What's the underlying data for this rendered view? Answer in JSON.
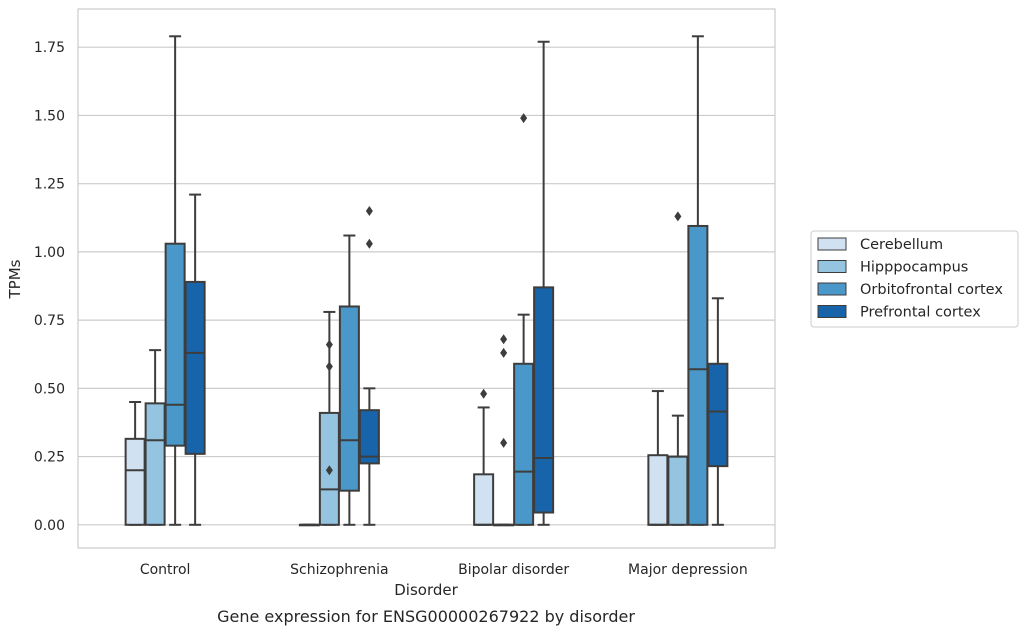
{
  "chart_data": {
    "type": "box",
    "title": "",
    "caption": "Gene expression for ENSG00000267922 by disorder",
    "xlabel": "Disorder",
    "ylabel": "TPMs",
    "categories": [
      "Control",
      "Schizophrenia",
      "Bipolar disorder",
      "Major depression"
    ],
    "ylim": [
      -0.085,
      1.89
    ],
    "yticks": [
      0.0,
      0.25,
      0.5,
      0.75,
      1.0,
      1.25,
      1.5,
      1.75
    ],
    "ytick_labels": [
      "0.00",
      "0.25",
      "0.50",
      "0.75",
      "1.00",
      "1.25",
      "1.50",
      "1.75"
    ],
    "grid": true,
    "legend_position": "right",
    "series": [
      {
        "name": "Cerebellum",
        "color": "#d0e1f2",
        "boxes": [
          {
            "whislo": 0.0,
            "q1": 0.0,
            "med": 0.2,
            "q3": 0.315,
            "whishi": 0.45,
            "fliers": []
          },
          {
            "whislo": 0.0,
            "q1": 0.0,
            "med": 0.0,
            "q3": 0.0,
            "whishi": 0.0,
            "fliers": []
          },
          {
            "whislo": 0.0,
            "q1": 0.0,
            "med": 0.0,
            "q3": 0.185,
            "whishi": 0.43,
            "fliers": [
              0.48
            ]
          },
          {
            "whislo": 0.0,
            "q1": 0.0,
            "med": 0.0,
            "q3": 0.255,
            "whishi": 0.49,
            "fliers": []
          }
        ]
      },
      {
        "name": "Hipppocampus",
        "color": "#94c4df",
        "boxes": [
          {
            "whislo": 0.0,
            "q1": 0.0,
            "med": 0.31,
            "q3": 0.445,
            "whishi": 0.64,
            "fliers": []
          },
          {
            "whislo": 0.0,
            "q1": 0.0,
            "med": 0.13,
            "q3": 0.41,
            "whishi": 0.78,
            "fliers": [
              0.66,
              0.58,
              0.2
            ]
          },
          {
            "whislo": 0.0,
            "q1": 0.0,
            "med": 0.0,
            "q3": 0.0,
            "whishi": 0.0,
            "fliers": [
              0.68,
              0.63,
              0.3
            ]
          },
          {
            "whislo": 0.0,
            "q1": 0.0,
            "med": 0.25,
            "q3": 0.25,
            "whishi": 0.4,
            "fliers": [
              1.13
            ]
          }
        ]
      },
      {
        "name": "Orbitofrontal cortex",
        "color": "#4a98c9",
        "boxes": [
          {
            "whislo": 0.0,
            "q1": 0.29,
            "med": 0.44,
            "q3": 1.03,
            "whishi": 1.79,
            "fliers": []
          },
          {
            "whislo": 0.0,
            "q1": 0.125,
            "med": 0.31,
            "q3": 0.8,
            "whishi": 1.06,
            "fliers": []
          },
          {
            "whislo": 0.0,
            "q1": 0.0,
            "med": 0.195,
            "q3": 0.59,
            "whishi": 0.77,
            "fliers": [
              1.49
            ]
          },
          {
            "whislo": 0.0,
            "q1": 0.0,
            "med": 0.57,
            "q3": 1.095,
            "whishi": 1.79,
            "fliers": []
          }
        ]
      },
      {
        "name": "Prefrontal cortex",
        "color": "#1764ab",
        "boxes": [
          {
            "whislo": 0.0,
            "q1": 0.26,
            "med": 0.63,
            "q3": 0.89,
            "whishi": 1.21,
            "fliers": []
          },
          {
            "whislo": 0.0,
            "q1": 0.225,
            "med": 0.25,
            "q3": 0.42,
            "whishi": 0.5,
            "fliers": [
              1.15,
              1.03
            ]
          },
          {
            "whislo": 0.0,
            "q1": 0.045,
            "med": 0.245,
            "q3": 0.87,
            "whishi": 1.77,
            "fliers": []
          },
          {
            "whislo": 0.0,
            "q1": 0.215,
            "med": 0.415,
            "q3": 0.59,
            "whishi": 0.83,
            "fliers": []
          }
        ]
      }
    ]
  }
}
